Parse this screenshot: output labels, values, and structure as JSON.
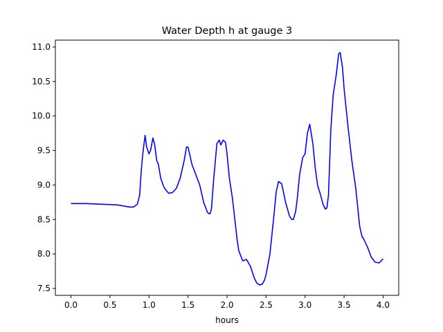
{
  "chart_data": {
    "type": "line",
    "title": "Water Depth h at gauge 3",
    "xlabel": "hours",
    "ylabel": "",
    "xlim": [
      -0.2,
      4.2
    ],
    "ylim": [
      7.4,
      11.1
    ],
    "xticks": [
      0.0,
      0.5,
      1.0,
      1.5,
      2.0,
      2.5,
      3.0,
      3.5,
      4.0
    ],
    "xtick_labels": [
      "0.0",
      "0.5",
      "1.0",
      "1.5",
      "2.0",
      "2.5",
      "3.0",
      "3.5",
      "4.0"
    ],
    "yticks": [
      7.5,
      8.0,
      8.5,
      9.0,
      9.5,
      10.0,
      10.5,
      11.0
    ],
    "ytick_labels": [
      "7.5",
      "8.0",
      "8.5",
      "9.0",
      "9.5",
      "10.0",
      "10.5",
      "11.0"
    ],
    "grid": false,
    "series": [
      {
        "color": "#0000ff",
        "x": [
          0.0,
          0.2,
          0.4,
          0.6,
          0.7,
          0.75,
          0.8,
          0.85,
          0.88,
          0.9,
          0.92,
          0.95,
          0.97,
          1.0,
          1.02,
          1.05,
          1.07,
          1.1,
          1.12,
          1.15,
          1.18,
          1.2,
          1.25,
          1.3,
          1.35,
          1.4,
          1.45,
          1.48,
          1.5,
          1.55,
          1.6,
          1.65,
          1.7,
          1.75,
          1.78,
          1.8,
          1.83,
          1.87,
          1.9,
          1.92,
          1.95,
          1.98,
          2.0,
          2.03,
          2.07,
          2.1,
          2.13,
          2.15,
          2.2,
          2.25,
          2.3,
          2.35,
          2.38,
          2.42,
          2.45,
          2.48,
          2.5,
          2.55,
          2.6,
          2.63,
          2.66,
          2.7,
          2.75,
          2.8,
          2.83,
          2.85,
          2.88,
          2.9,
          2.93,
          2.97,
          3.0,
          3.03,
          3.06,
          3.1,
          3.13,
          3.16,
          3.2,
          3.23,
          3.26,
          3.28,
          3.3,
          3.33,
          3.36,
          3.4,
          3.43,
          3.45,
          3.48,
          3.5,
          3.55,
          3.6,
          3.65,
          3.7,
          3.73,
          3.75,
          3.8,
          3.85,
          3.9,
          3.95,
          4.0
        ],
        "y": [
          8.73,
          8.73,
          8.72,
          8.71,
          8.69,
          8.68,
          8.68,
          8.72,
          8.85,
          9.2,
          9.45,
          9.72,
          9.55,
          9.45,
          9.5,
          9.68,
          9.6,
          9.35,
          9.3,
          9.1,
          9.0,
          8.95,
          8.88,
          8.89,
          8.95,
          9.1,
          9.35,
          9.55,
          9.55,
          9.3,
          9.15,
          9.0,
          8.75,
          8.6,
          8.58,
          8.65,
          9.1,
          9.6,
          9.65,
          9.58,
          9.65,
          9.62,
          9.45,
          9.1,
          8.8,
          8.5,
          8.2,
          8.05,
          7.9,
          7.92,
          7.82,
          7.65,
          7.58,
          7.55,
          7.56,
          7.62,
          7.7,
          8.0,
          8.55,
          8.9,
          9.05,
          9.02,
          8.75,
          8.55,
          8.5,
          8.5,
          8.62,
          8.8,
          9.15,
          9.4,
          9.45,
          9.75,
          9.88,
          9.6,
          9.25,
          9.0,
          8.85,
          8.72,
          8.65,
          8.67,
          8.85,
          9.8,
          10.3,
          10.6,
          10.9,
          10.92,
          10.7,
          10.4,
          9.85,
          9.35,
          8.95,
          8.4,
          8.25,
          8.22,
          8.1,
          7.95,
          7.88,
          7.87,
          7.93
        ]
      }
    ]
  }
}
